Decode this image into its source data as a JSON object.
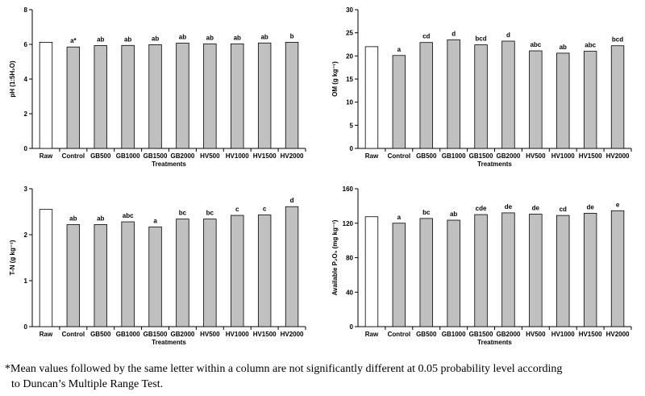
{
  "chart_data": [
    {
      "type": "bar",
      "ylabel": "pH (1:5H₂O)",
      "xlabel": "Treatments",
      "ylim": [
        0,
        8
      ],
      "yticks": [
        "0",
        "2",
        "4",
        "6",
        "8"
      ],
      "categories": [
        "Raw",
        "Control",
        "GB500",
        "GB1000",
        "GB1500",
        "GB2000",
        "HV500",
        "HV1000",
        "HV1500",
        "HV2000"
      ],
      "values": [
        6.12,
        5.85,
        5.93,
        5.94,
        5.98,
        6.07,
        6.03,
        6.03,
        6.08,
        6.12
      ],
      "letters": [
        "",
        "a*",
        "ab",
        "ab",
        "ab",
        "ab",
        "ab",
        "ab",
        "ab",
        "b"
      ]
    },
    {
      "type": "bar",
      "ylabel": "OM (g kg⁻¹)",
      "xlabel": "Treatments",
      "ylim": [
        0,
        30
      ],
      "yticks": [
        "0",
        "5",
        "10",
        "15",
        "20",
        "25",
        "30"
      ],
      "categories": [
        "Raw",
        "Control",
        "GB500",
        "GB1000",
        "GB1500",
        "GB2000",
        "HV500",
        "HV1000",
        "HV1500",
        "HV2000"
      ],
      "values": [
        22.0,
        20.1,
        22.9,
        23.5,
        22.4,
        23.2,
        21.1,
        20.6,
        21.0,
        22.2
      ],
      "letters": [
        "",
        "a",
        "cd",
        "d",
        "bcd",
        "d",
        "abc",
        "ab",
        "abc",
        "bcd"
      ]
    },
    {
      "type": "bar",
      "ylabel": "T-N (g kg⁻¹)",
      "xlabel": "Treatments",
      "ylim": [
        0,
        3
      ],
      "yticks": [
        "0",
        "1",
        "2",
        "3"
      ],
      "categories": [
        "Raw",
        "Control",
        "GB500",
        "GB1000",
        "GB1500",
        "GB2000",
        "HV500",
        "HV1000",
        "HV1500",
        "HV2000"
      ],
      "values": [
        2.55,
        2.22,
        2.22,
        2.28,
        2.17,
        2.34,
        2.34,
        2.42,
        2.43,
        2.61
      ],
      "letters": [
        "",
        "ab",
        "ab",
        "abc",
        "a",
        "bc",
        "bc",
        "c",
        "c",
        "d"
      ]
    },
    {
      "type": "bar",
      "ylabel": "Available P₂O₅ (mg kg⁻¹)",
      "xlabel": "Treatments",
      "ylim": [
        0,
        160
      ],
      "yticks": [
        "0",
        "40",
        "80",
        "120",
        "160"
      ],
      "categories": [
        "Raw",
        "Control",
        "GB500",
        "GB1000",
        "GB1500",
        "GB2000",
        "HV500",
        "HV1000",
        "HV1500",
        "HV2000"
      ],
      "values": [
        127.5,
        120.0,
        125.5,
        123.5,
        130.0,
        132.0,
        130.5,
        129.0,
        131.5,
        134.5
      ],
      "letters": [
        "",
        "a",
        "bc",
        "ab",
        "cde",
        "de",
        "de",
        "cd",
        "de",
        "e"
      ]
    }
  ],
  "colors": {
    "raw_fill": "#ffffff",
    "bar_fill": "#c0c0c0",
    "stroke": "#000000"
  },
  "footnote": {
    "line1": "*Mean values followed by the same letter within a column are not significantly different at 0.05 probability level according",
    "line2": "to Duncan’s Multiple Range Test."
  }
}
